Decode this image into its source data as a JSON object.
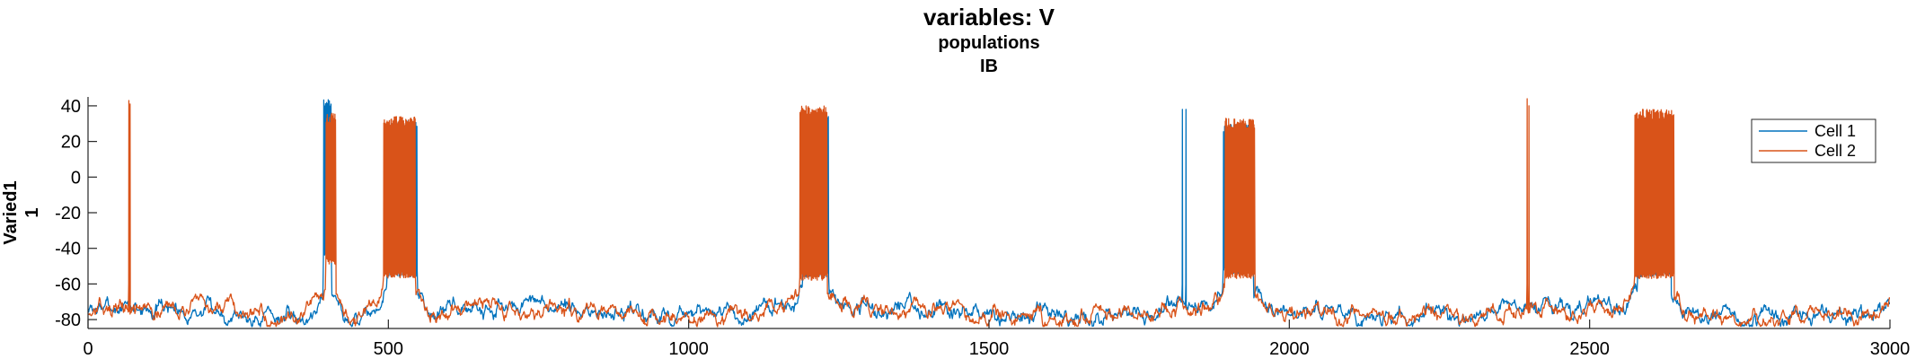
{
  "chart_data": {
    "type": "line",
    "title": "variables: V",
    "subtitle_lines": [
      "populations",
      "IB"
    ],
    "ylabel_lines": [
      "Varied1",
      "1"
    ],
    "xlabel": "",
    "xlim": [
      0,
      3000
    ],
    "ylim": [
      -85,
      45
    ],
    "xticks": [
      0,
      500,
      1000,
      1500,
      2000,
      2500,
      3000
    ],
    "yticks": [
      -80,
      -60,
      -40,
      -20,
      0,
      20,
      40
    ],
    "grid": false,
    "legend_position": "top-right",
    "baseline": -76,
    "series": [
      {
        "name": "Cell 1",
        "color": "#0072BD",
        "seed": 7,
        "events": [
          {
            "type": "burst",
            "start": 392,
            "end": 405,
            "top": 44,
            "bottom": -40
          },
          {
            "type": "burst",
            "start": 498,
            "end": 548,
            "top": 32,
            "bottom": -52
          },
          {
            "type": "burst",
            "start": 1190,
            "end": 1233,
            "top": 34,
            "bottom": -52
          },
          {
            "type": "spike",
            "x": 1822,
            "peak": 38
          },
          {
            "type": "spike",
            "x": 1828,
            "peak": 38
          },
          {
            "type": "burst",
            "start": 1890,
            "end": 1940,
            "top": 30,
            "bottom": -50
          },
          {
            "type": "burst",
            "start": 2580,
            "end": 2635,
            "top": 32,
            "bottom": -52
          }
        ]
      },
      {
        "name": "Cell 2",
        "color": "#D95319",
        "seed": 13,
        "events": [
          {
            "type": "spike",
            "x": 68,
            "peak": 43
          },
          {
            "type": "spike",
            "x": 70,
            "peak": 41
          },
          {
            "type": "burst",
            "start": 396,
            "end": 412,
            "top": 36,
            "bottom": -45
          },
          {
            "type": "burst",
            "start": 492,
            "end": 545,
            "top": 34,
            "bottom": -53
          },
          {
            "type": "burst",
            "start": 1185,
            "end": 1230,
            "top": 40,
            "bottom": -54
          },
          {
            "type": "burst",
            "start": 1893,
            "end": 1942,
            "top": 33,
            "bottom": -53
          },
          {
            "type": "spike",
            "x": 2396,
            "peak": 44
          },
          {
            "type": "spike",
            "x": 2399,
            "peak": 40
          },
          {
            "type": "burst",
            "start": 2575,
            "end": 2640,
            "top": 38,
            "bottom": -53
          }
        ]
      }
    ]
  }
}
